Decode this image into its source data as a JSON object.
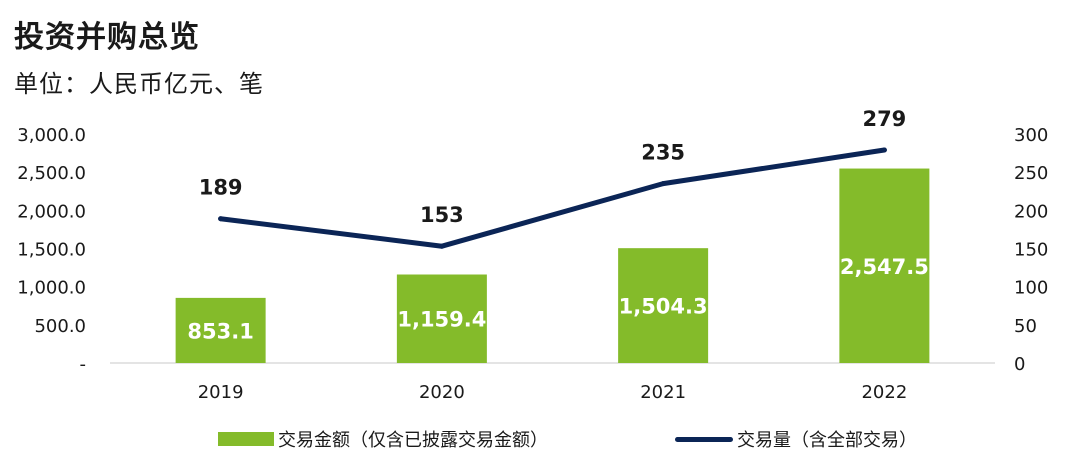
{
  "title": "投资并购总览",
  "subtitle": "单位：人民币亿元、笔",
  "colors": {
    "bar": "#84bb2a",
    "line": "#0b2556",
    "bar_label": "#ffffff",
    "line_label": "#1a1a1a"
  },
  "chart_data": {
    "type": "bar",
    "title": "投资并购总览",
    "categories": [
      "2019",
      "2020",
      "2021",
      "2022"
    ],
    "series": [
      {
        "name": "交易金额（仅含已披露交易金额）",
        "type": "bar",
        "axis": "left",
        "values": [
          853.1,
          1159.4,
          1504.3,
          2547.5
        ],
        "labels": [
          "853.1",
          "1,159.4",
          "1,504.3",
          "2,547.5"
        ]
      },
      {
        "name": "交易量（含全部交易）",
        "type": "line",
        "axis": "right",
        "values": [
          189,
          153,
          235,
          279
        ],
        "labels": [
          "189",
          "153",
          "235",
          "279"
        ]
      }
    ],
    "y_left": {
      "ylim": [
        0,
        3000
      ],
      "ticks": [
        "-",
        "500.0",
        "1,000.0",
        "1,500.0",
        "2,000.0",
        "2,500.0",
        "3,000.0"
      ]
    },
    "y_right": {
      "ylim": [
        0,
        300
      ],
      "ticks": [
        "0",
        "50",
        "100",
        "150",
        "200",
        "250",
        "300"
      ]
    },
    "grid": false,
    "legend": "bottom"
  }
}
